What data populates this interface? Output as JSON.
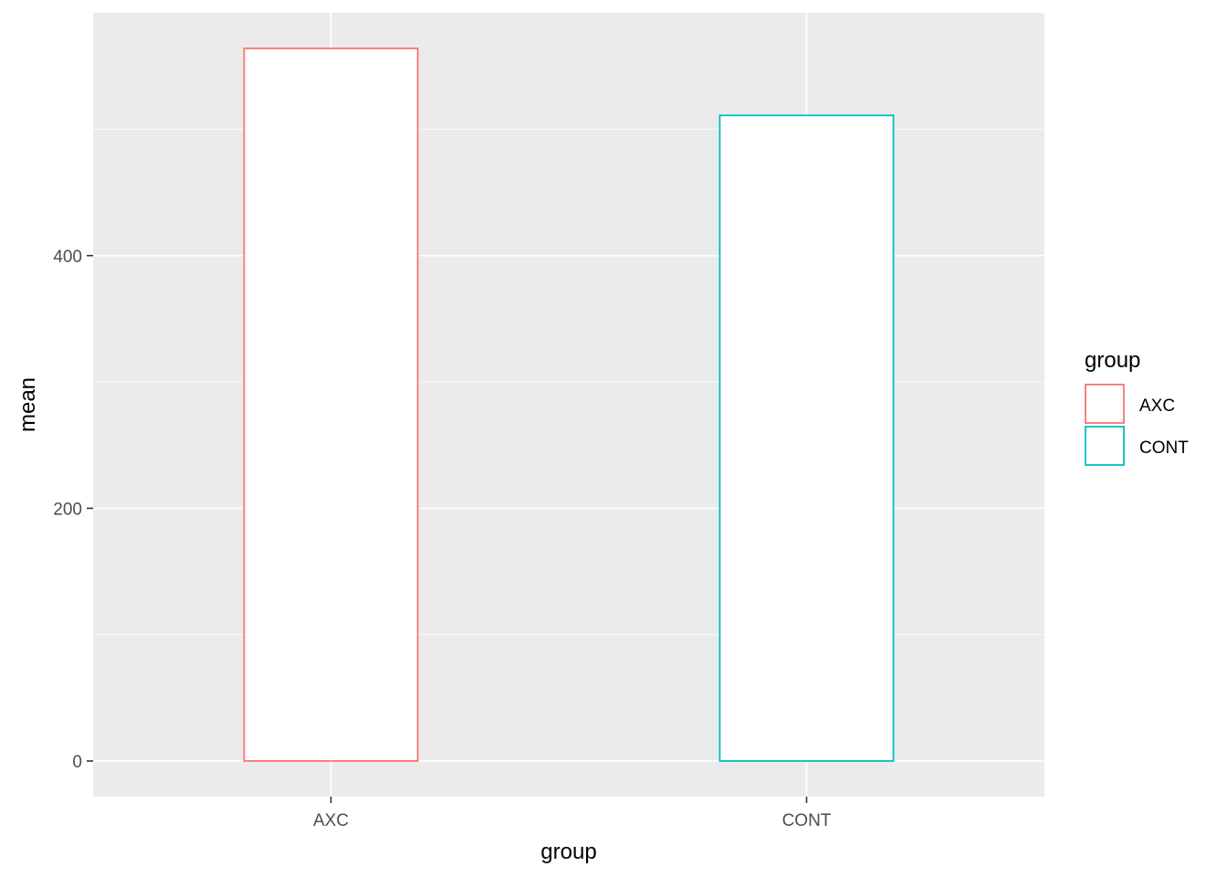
{
  "chart_data": {
    "type": "bar",
    "title": "",
    "xlabel": "group",
    "ylabel": "mean",
    "categories": [
      "AXC",
      "CONT"
    ],
    "values": [
      564,
      511
    ],
    "ylim": [
      -28.2,
      592.2
    ],
    "y_ticks": [
      0,
      200,
      400
    ],
    "y_tick_labels": [
      "0",
      "200",
      "400"
    ],
    "grid": true,
    "bar_fill": "#ffffff",
    "bar_colors": [
      "#F8766D",
      "#00BFC4"
    ],
    "panel_background": "#EBEBEB",
    "grid_color": "#ffffff",
    "legend": {
      "title": "group",
      "placement": "right",
      "entries": [
        {
          "label": "AXC",
          "color": "#F8766D"
        },
        {
          "label": "CONT",
          "color": "#00BFC4"
        }
      ]
    }
  }
}
